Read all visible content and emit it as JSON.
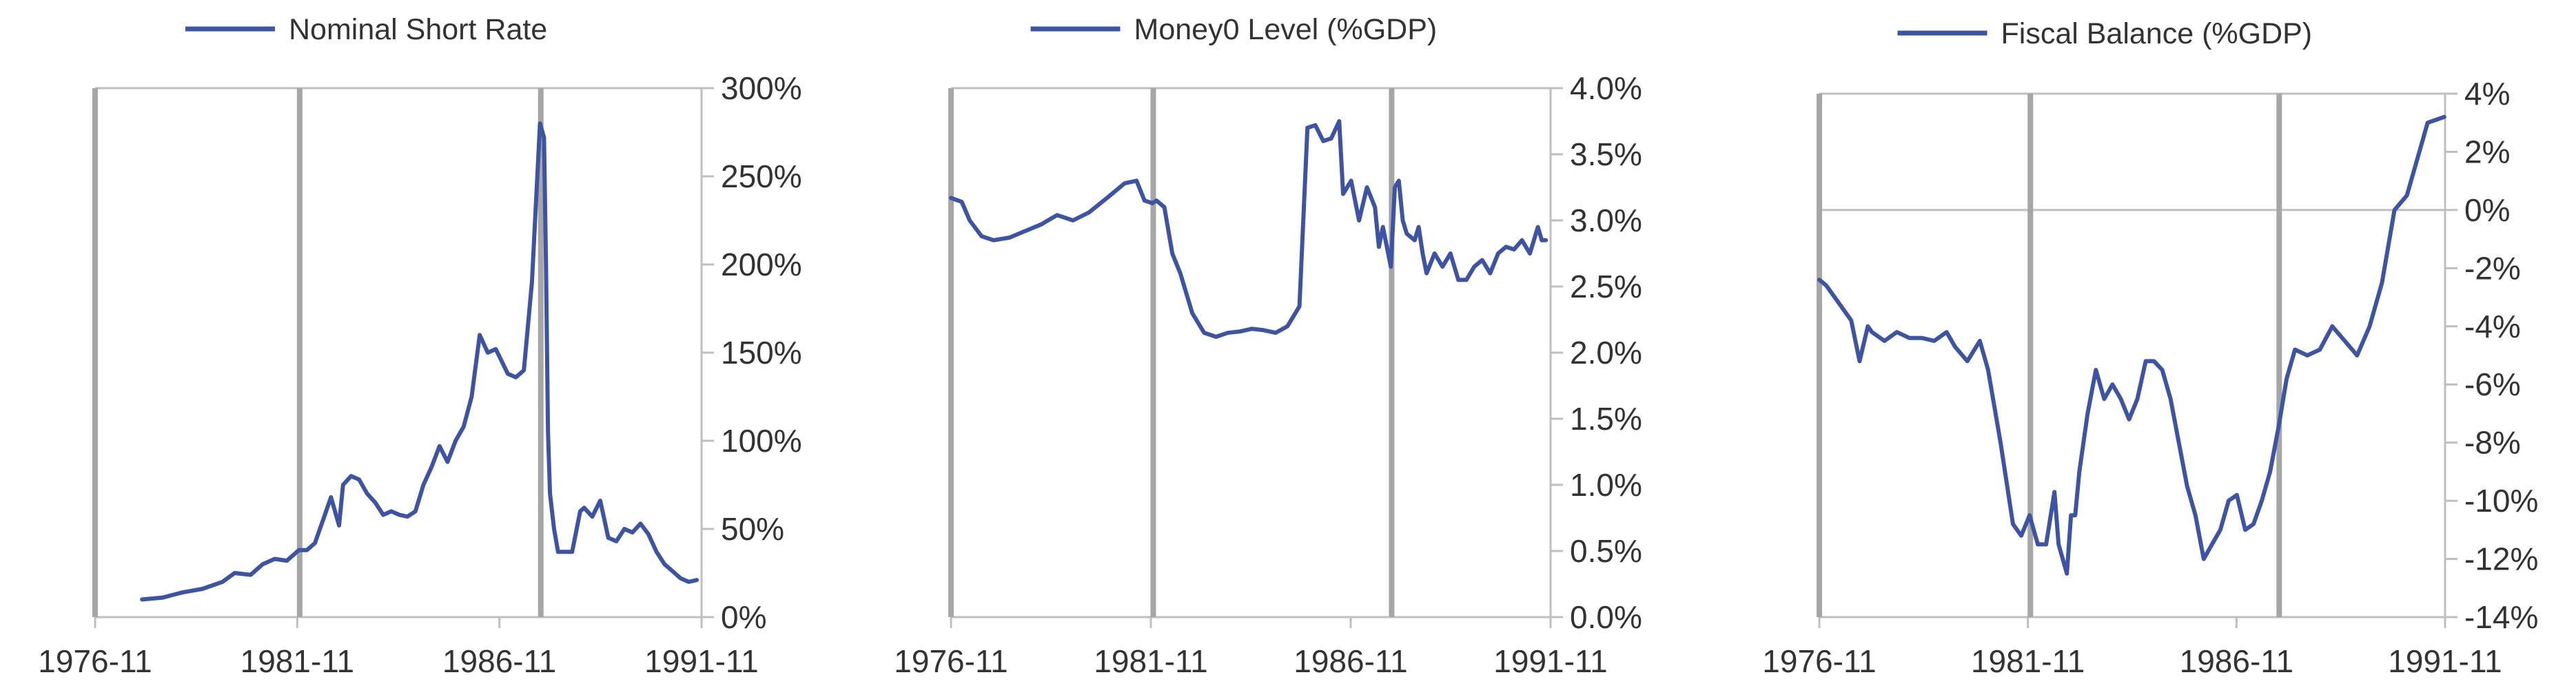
{
  "colors": {
    "series": "#3D53A3",
    "axis": "#BFBFBF",
    "event_line": "#A6A6A6",
    "text": "#333333"
  },
  "chart_data": [
    {
      "type": "line",
      "legend": "Nominal Short Rate",
      "x_ticks": [
        "1976-11",
        "1981-11",
        "1986-11",
        "1991-11"
      ],
      "y_ticks": [
        "0%",
        "50%",
        "100%",
        "150%",
        "200%",
        "250%",
        "300%"
      ],
      "ylim": [
        0,
        300
      ],
      "xlim": [
        1976.83,
        1991.92
      ],
      "event_lines": [
        1976.83,
        1981.92,
        1987.92
      ],
      "series": [
        {
          "x": [
            1978.0,
            1978.5,
            1979.0,
            1979.5,
            1980.0,
            1980.3,
            1980.7,
            1981.0,
            1981.3,
            1981.6,
            1981.9,
            1982.1,
            1982.3,
            1982.5,
            1982.7,
            1982.9,
            1983.0,
            1983.2,
            1983.4,
            1983.6,
            1983.8,
            1984.0,
            1984.2,
            1984.4,
            1984.6,
            1984.8,
            1985.0,
            1985.2,
            1985.4,
            1985.6,
            1985.8,
            1986.0,
            1986.2,
            1986.4,
            1986.6,
            1986.8,
            1986.95,
            1987.1,
            1987.3,
            1987.5,
            1987.7,
            1987.9,
            1988.0,
            1988.05,
            1988.1,
            1988.15,
            1988.25,
            1988.35,
            1988.5,
            1988.7,
            1988.9,
            1989.0,
            1989.2,
            1989.4,
            1989.6,
            1989.8,
            1990.0,
            1990.2,
            1990.4,
            1990.6,
            1990.8,
            1991.0,
            1991.2,
            1991.4,
            1991.6,
            1991.8
          ],
          "y": [
            10,
            11,
            14,
            16,
            20,
            25,
            24,
            30,
            33,
            32,
            38,
            38,
            42,
            55,
            68,
            52,
            75,
            80,
            78,
            70,
            65,
            58,
            60,
            58,
            57,
            60,
            75,
            85,
            97,
            88,
            100,
            108,
            125,
            160,
            150,
            152,
            145,
            138,
            136,
            140,
            190,
            280,
            272,
            200,
            105,
            70,
            50,
            37,
            37,
            37,
            60,
            62,
            57,
            66,
            45,
            43,
            50,
            48,
            53,
            47,
            37,
            30,
            26,
            22,
            20,
            21
          ]
        }
      ]
    },
    {
      "type": "line",
      "legend": "Money0 Level (%GDP)",
      "x_ticks": [
        "1976-11",
        "1981-11",
        "1986-11",
        "1991-11"
      ],
      "y_ticks": [
        "0.0%",
        "0.5%",
        "1.0%",
        "1.5%",
        "2.0%",
        "2.5%",
        "3.0%",
        "3.5%",
        "4.0%"
      ],
      "ylim": [
        0,
        4
      ],
      "xlim": [
        1976.83,
        1991.92
      ],
      "event_lines": [
        1976.83,
        1981.92,
        1987.92
      ],
      "series": [
        {
          "x": [
            1976.83,
            1977.1,
            1977.3,
            1977.6,
            1977.9,
            1978.3,
            1978.7,
            1979.1,
            1979.5,
            1979.9,
            1980.3,
            1980.8,
            1981.2,
            1981.5,
            1981.7,
            1981.9,
            1982.0,
            1982.2,
            1982.4,
            1982.6,
            1982.9,
            1983.2,
            1983.5,
            1983.8,
            1984.1,
            1984.4,
            1984.7,
            1985.0,
            1985.3,
            1985.6,
            1985.8,
            1986.0,
            1986.2,
            1986.4,
            1986.6,
            1986.7,
            1986.9,
            1987.1,
            1987.3,
            1987.5,
            1987.6,
            1987.7,
            1987.9,
            1988.0,
            1988.1,
            1988.2,
            1988.3,
            1988.5,
            1988.6,
            1988.7,
            1988.8,
            1989.0,
            1989.2,
            1989.4,
            1989.6,
            1989.8,
            1990.0,
            1990.2,
            1990.4,
            1990.6,
            1990.8,
            1991.0,
            1991.2,
            1991.4,
            1991.6,
            1991.7,
            1991.8
          ],
          "y": [
            3.17,
            3.14,
            3.0,
            2.88,
            2.85,
            2.87,
            2.92,
            2.97,
            3.04,
            3.0,
            3.06,
            3.18,
            3.28,
            3.3,
            3.15,
            3.13,
            3.15,
            3.1,
            2.75,
            2.6,
            2.3,
            2.15,
            2.12,
            2.15,
            2.16,
            2.18,
            2.17,
            2.15,
            2.2,
            2.35,
            3.7,
            3.72,
            3.6,
            3.62,
            3.75,
            3.2,
            3.3,
            3.0,
            3.25,
            3.1,
            2.8,
            2.95,
            2.65,
            3.25,
            3.3,
            3.0,
            2.9,
            2.85,
            2.95,
            2.75,
            2.6,
            2.75,
            2.65,
            2.75,
            2.55,
            2.55,
            2.65,
            2.7,
            2.6,
            2.75,
            2.8,
            2.78,
            2.85,
            2.75,
            2.95,
            2.85,
            2.85
          ]
        }
      ]
    },
    {
      "type": "line",
      "legend": "Fiscal Balance (%GDP)",
      "x_ticks": [
        "1976-11",
        "1981-11",
        "1986-11",
        "1991-11"
      ],
      "y_ticks": [
        "-14%",
        "-12%",
        "-10%",
        "-8%",
        "-6%",
        "-4%",
        "-2%",
        "0%",
        "2%",
        "4%"
      ],
      "ylim": [
        -14,
        4
      ],
      "xlim": [
        1976.83,
        1991.92
      ],
      "event_lines": [
        1976.83,
        1981.92,
        1987.92
      ],
      "series": [
        {
          "x": [
            1976.83,
            1977.0,
            1977.3,
            1977.6,
            1977.8,
            1978.0,
            1978.1,
            1978.4,
            1978.7,
            1979.0,
            1979.3,
            1979.6,
            1979.9,
            1980.1,
            1980.4,
            1980.7,
            1980.9,
            1981.2,
            1981.5,
            1981.7,
            1981.9,
            1982.1,
            1982.3,
            1982.5,
            1982.6,
            1982.8,
            1982.9,
            1983.0,
            1983.1,
            1983.3,
            1983.5,
            1983.7,
            1983.9,
            1984.1,
            1984.3,
            1984.5,
            1984.7,
            1984.9,
            1985.1,
            1985.3,
            1985.5,
            1985.7,
            1985.9,
            1986.1,
            1986.3,
            1986.5,
            1986.7,
            1986.9,
            1987.1,
            1987.3,
            1987.5,
            1987.7,
            1987.9,
            1988.1,
            1988.3,
            1988.6,
            1988.9,
            1989.2,
            1989.5,
            1989.8,
            1990.1,
            1990.4,
            1990.7,
            1991.0,
            1991.3,
            1991.5,
            1991.7,
            1991.9
          ],
          "y": [
            -2.4,
            -2.6,
            -3.2,
            -3.8,
            -5.2,
            -4.0,
            -4.2,
            -4.5,
            -4.2,
            -4.4,
            -4.4,
            -4.5,
            -4.2,
            -4.7,
            -5.2,
            -4.5,
            -5.5,
            -8.0,
            -10.8,
            -11.2,
            -10.5,
            -11.5,
            -11.5,
            -9.7,
            -11.5,
            -12.5,
            -10.5,
            -10.5,
            -9.0,
            -7.0,
            -5.5,
            -6.5,
            -6.0,
            -6.5,
            -7.2,
            -6.5,
            -5.2,
            -5.2,
            -5.5,
            -6.5,
            -8.0,
            -9.5,
            -10.5,
            -12.0,
            -11.5,
            -11.0,
            -10.0,
            -9.8,
            -11.0,
            -10.8,
            -10.0,
            -9.0,
            -7.5,
            -5.8,
            -4.8,
            -5.0,
            -4.8,
            -4.0,
            -4.5,
            -5.0,
            -4.0,
            -2.5,
            0.0,
            0.5,
            2.0,
            3.0,
            3.1,
            3.2
          ]
        }
      ]
    }
  ]
}
